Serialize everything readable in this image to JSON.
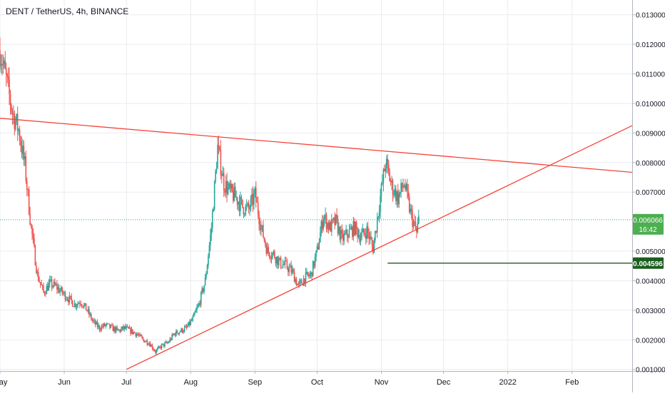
{
  "chart_data": {
    "type": "candlestick",
    "title": "DENT / TetherUS, 4h, BINANCE",
    "y_axis": {
      "ticks": [
        "0.013000",
        "0.012000",
        "0.011000",
        "0.010000",
        "0.009000",
        "0.008000",
        "0.007000",
        "0.005000",
        "0.004000",
        "0.003000",
        "0.002000",
        "0.001000"
      ],
      "ylim": [
        0.000945,
        0.0135
      ]
    },
    "x_axis": {
      "ticks": [
        "May",
        "Jun",
        "Jul",
        "Aug",
        "Sep",
        "Oct",
        "Nov",
        "Dec",
        "2022",
        "Feb"
      ],
      "range": [
        "2021-05-01",
        "2022-03-02"
      ]
    },
    "series": [
      {
        "x": [
          "2021-05-01",
          "2021-05-04",
          "2021-05-07",
          "2021-05-10",
          "2021-05-13",
          "2021-05-16",
          "2021-05-19",
          "2021-05-22",
          "2021-05-25",
          "2021-05-28",
          "2021-05-31",
          "2021-06-03",
          "2021-06-06",
          "2021-06-09",
          "2021-06-12",
          "2021-06-15",
          "2021-06-18",
          "2021-06-21",
          "2021-06-24",
          "2021-06-27",
          "2021-06-30",
          "2021-07-03",
          "2021-07-06",
          "2021-07-09",
          "2021-07-12",
          "2021-07-15",
          "2021-07-18",
          "2021-07-21",
          "2021-07-24",
          "2021-07-27",
          "2021-07-30",
          "2021-08-02",
          "2021-08-05",
          "2021-08-08",
          "2021-08-11",
          "2021-08-14",
          "2021-08-17",
          "2021-08-20",
          "2021-08-23",
          "2021-08-26",
          "2021-08-29",
          "2021-09-01",
          "2021-09-04",
          "2021-09-07",
          "2021-09-10",
          "2021-09-13",
          "2021-09-16",
          "2021-09-19",
          "2021-09-22",
          "2021-09-25",
          "2021-09-28",
          "2021-10-01",
          "2021-10-04",
          "2021-10-07",
          "2021-10-10",
          "2021-10-13",
          "2021-10-16",
          "2021-10-19",
          "2021-10-22",
          "2021-10-25",
          "2021-10-28",
          "2021-10-31",
          "2021-11-03",
          "2021-11-06",
          "2021-11-09",
          "2021-11-12",
          "2021-11-15",
          "2021-11-18",
          "2021-11-19"
        ],
        "close": [
          0.0118,
          0.0108,
          0.0097,
          0.0091,
          0.0079,
          0.0058,
          0.0042,
          0.0036,
          0.0039,
          0.0038,
          0.0036,
          0.0034,
          0.0032,
          0.0033,
          0.003,
          0.0026,
          0.0024,
          0.0025,
          0.0024,
          0.0023,
          0.0024,
          0.0023,
          0.0022,
          0.002,
          0.0019,
          0.0016,
          0.0018,
          0.0019,
          0.0022,
          0.0023,
          0.0024,
          0.0027,
          0.0032,
          0.004,
          0.0058,
          0.0085,
          0.0073,
          0.007,
          0.0068,
          0.0065,
          0.0064,
          0.0069,
          0.0058,
          0.005,
          0.0049,
          0.0046,
          0.0045,
          0.0043,
          0.0038,
          0.0041,
          0.0042,
          0.005,
          0.0062,
          0.0058,
          0.006,
          0.0054,
          0.0056,
          0.0058,
          0.0055,
          0.0057,
          0.0051,
          0.0066,
          0.008,
          0.0072,
          0.0068,
          0.0073,
          0.0063,
          0.0056,
          0.006066
        ]
      }
    ],
    "current_price": {
      "value": "0.006066",
      "countdown": "16:42"
    },
    "horizontal_level": {
      "value": "0.004596"
    },
    "trendlines": [
      {
        "from": [
          "2021-05-01",
          0.0095
        ],
        "to": [
          "2022-03-02",
          0.00767
        ]
      },
      {
        "from": [
          "2021-07-01",
          0.001
        ],
        "to": [
          "2022-03-02",
          0.00925
        ]
      }
    ],
    "colors": {
      "up": "#26a69a",
      "down": "#ef5350",
      "trendline": "#f44336",
      "level": "#1b5e20",
      "price_label": "#4caf50",
      "grid": "#e9ebef"
    },
    "grid": true
  }
}
